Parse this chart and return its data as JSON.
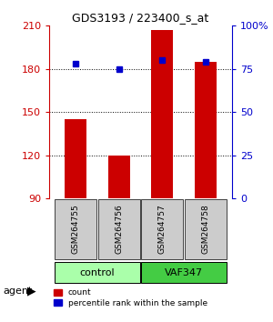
{
  "title": "GDS3193 / 223400_s_at",
  "samples": [
    "GSM264755",
    "GSM264756",
    "GSM264757",
    "GSM264758"
  ],
  "bar_values": [
    145,
    120,
    207,
    185
  ],
  "bar_baseline": 90,
  "percentile_values": [
    78,
    75,
    80,
    79
  ],
  "bar_color": "#cc0000",
  "percentile_color": "#0000cc",
  "ylim_left": [
    90,
    210
  ],
  "ylim_right": [
    0,
    100
  ],
  "yticks_left": [
    90,
    120,
    150,
    180,
    210
  ],
  "yticks_right": [
    0,
    25,
    50,
    75,
    100
  ],
  "yticklabels_right": [
    "0",
    "25",
    "50",
    "75",
    "100%"
  ],
  "groups": [
    {
      "label": "control",
      "indices": [
        0,
        1
      ],
      "color": "#aaffaa"
    },
    {
      "label": "VAF347",
      "indices": [
        2,
        3
      ],
      "color": "#44cc44"
    }
  ],
  "agent_label": "agent",
  "legend_count_label": "count",
  "legend_pct_label": "percentile rank within the sample",
  "grid_lines": [
    120,
    150,
    180
  ],
  "bar_width": 0.5,
  "bg_color": "#ffffff",
  "axis_left_color": "#cc0000",
  "axis_right_color": "#0000cc"
}
